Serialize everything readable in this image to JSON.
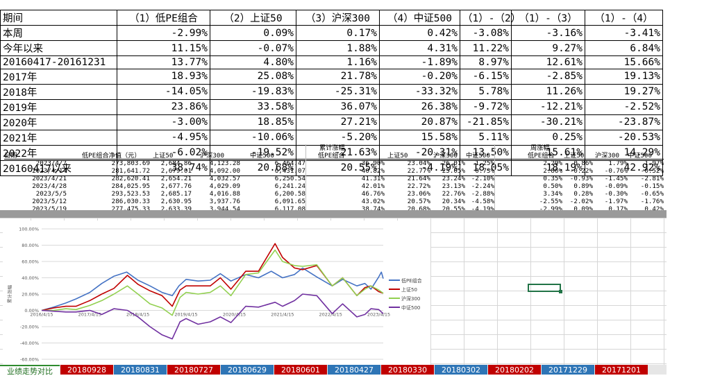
{
  "summary": {
    "headers": [
      "期间",
      "（1）低PE组合",
      "（2）上证50",
      "（3）沪深300",
      "（4）中证500",
      "（1）-（2）",
      "（1）-（3）",
      "（1）-（4）"
    ],
    "rows": [
      [
        "本周",
        "-2.99%",
        "0.09%",
        "0.17%",
        "0.42%",
        "-3.08%",
        "-3.16%",
        "-3.41%"
      ],
      [
        "今年以来",
        "11.15%",
        "-0.07%",
        "1.88%",
        "4.31%",
        "11.22%",
        "9.27%",
        "6.84%"
      ],
      [
        "20160417-20161231",
        "13.77%",
        "4.80%",
        "1.16%",
        "-1.89%",
        "8.97%",
        "12.61%",
        "15.66%"
      ],
      [
        "2017年",
        "18.93%",
        "25.08%",
        "21.78%",
        "-0.20%",
        "-6.15%",
        "-2.85%",
        "19.13%"
      ],
      [
        "2018年",
        "-14.05%",
        "-19.83%",
        "-25.31%",
        "-33.32%",
        "5.78%",
        "11.26%",
        "19.27%"
      ],
      [
        "2019年",
        "23.86%",
        "33.58%",
        "36.07%",
        "26.38%",
        "-9.72%",
        "-12.21%",
        "-2.52%"
      ],
      [
        "2020年",
        "-3.00%",
        "18.85%",
        "27.21%",
        "20.87%",
        "-21.85%",
        "-30.21%",
        "-23.87%"
      ],
      [
        "2021年",
        "-4.95%",
        "-10.06%",
        "-5.20%",
        "15.58%",
        "5.11%",
        "0.25%",
        "-20.53%"
      ],
      [
        "2022年",
        "-6.02%",
        "-19.52%",
        "-21.63%",
        "-20.31%",
        "13.50%",
        "15.61%",
        "14.29%"
      ],
      [
        "20160417以来",
        "38.74%",
        "20.68%",
        "20.55%",
        "-4.19%",
        "18.05%",
        "18.19%",
        "42.92%"
      ]
    ]
  },
  "weekly": {
    "section_cum": "累计涨幅",
    "section_week": "周涨幅",
    "headers": [
      "日期",
      "低PE组合净值（元）",
      "上证50",
      "沪深300",
      "中证500",
      "低PE组合",
      "上证50",
      "沪深300",
      "中证500",
      "低PE组合",
      "上证50",
      "沪深300",
      "中证500"
    ],
    "rows": [
      [
        "2023/4/7",
        "273,803.69",
        "2,684.86",
        "4,123.28",
        "6,464.47",
        "36.90%",
        "23.04%",
        "26.01%",
        "1.25%",
        "2.29%",
        "0.86%",
        "1.79%",
        "1.97%"
      ],
      [
        "2023/4/14",
        "281,641.72",
        "2,679.01",
        "4,092.00",
        "6,431.07",
        "40.82%",
        "22.77%",
        "25.05%",
        "0.73%",
        "2.86%",
        "-0.22%",
        "-0.76%",
        "-0.52%"
      ],
      [
        "2023/4/21",
        "282,620.41",
        "2,654.21",
        "4,032.57",
        "6,250.54",
        "41.31%",
        "21.64%",
        "23.24%",
        "-2.10%",
        "0.35%",
        "-0.93%",
        "-1.45%",
        "-2.81%"
      ],
      [
        "2023/4/28",
        "284,025.95",
        "2,677.76",
        "4,029.09",
        "6,241.24",
        "42.01%",
        "22.72%",
        "23.13%",
        "-2.24%",
        "0.50%",
        "0.89%",
        "-0.09%",
        "-0.15%"
      ],
      [
        "2023/5/5",
        "293,523.53",
        "2,685.17",
        "4,016.88",
        "6,200.58",
        "46.76%",
        "23.06%",
        "22.76%",
        "-2.88%",
        "3.34%",
        "0.28%",
        "-0.30%",
        "-0.65%"
      ],
      [
        "2023/5/12",
        "286,030.33",
        "2,630.95",
        "3,937.76",
        "6,091.65",
        "43.02%",
        "20.57%",
        "20.34%",
        "-4.58%",
        "-2.55%",
        "-2.02%",
        "-1.97%",
        "-1.76%"
      ],
      [
        "2023/5/19",
        "277,475.33",
        "2,633.39",
        "3,944.54",
        "6,117.08",
        "38.74%",
        "20.68%",
        "20.55%",
        "-4.19%",
        "-2.99%",
        "0.09%",
        "0.17%",
        "0.42%"
      ]
    ]
  },
  "chart_data": {
    "type": "line",
    "title": "",
    "ylabel": "累计涨幅",
    "ylim": [
      -0.6,
      1.0
    ],
    "yticks": [
      "100.00%",
      "80.00%",
      "60.00%",
      "40.00%",
      "20.00%",
      "0.00%",
      "-20.00%",
      "-40.00%",
      "-60.00%"
    ],
    "xticks": [
      "2016/4/15",
      "2017/4/15",
      "2018/4/15",
      "2019/4/15",
      "2020/4/15",
      "2021/4/15",
      "2022/4/15",
      "2023/4/15"
    ],
    "x_range": [
      "2016/4/15",
      "2023/5/19"
    ],
    "legend_position": "right",
    "series": [
      {
        "name": "低PE组合",
        "color": "#4472c4",
        "points": [
          [
            "2016/4/15",
            0.0
          ],
          [
            "2016/7/15",
            0.04
          ],
          [
            "2016/10/15",
            0.09
          ],
          [
            "2016/12/31",
            0.14
          ],
          [
            "2017/4/15",
            0.22
          ],
          [
            "2017/7/15",
            0.33
          ],
          [
            "2017/10/15",
            0.42
          ],
          [
            "2018/1/20",
            0.47
          ],
          [
            "2018/4/15",
            0.37
          ],
          [
            "2018/7/15",
            0.3
          ],
          [
            "2018/10/15",
            0.22
          ],
          [
            "2018/12/31",
            0.18
          ],
          [
            "2019/2/20",
            0.3
          ],
          [
            "2019/4/15",
            0.38
          ],
          [
            "2019/7/15",
            0.36
          ],
          [
            "2019/10/15",
            0.37
          ],
          [
            "2019/12/31",
            0.45
          ],
          [
            "2020/3/20",
            0.36
          ],
          [
            "2020/7/10",
            0.44
          ],
          [
            "2020/10/15",
            0.4
          ],
          [
            "2021/1/20",
            0.48
          ],
          [
            "2021/4/15",
            0.4
          ],
          [
            "2021/7/15",
            0.44
          ],
          [
            "2021/9/15",
            0.52
          ],
          [
            "2021/12/31",
            0.41
          ],
          [
            "2022/4/27",
            0.3
          ],
          [
            "2022/7/15",
            0.38
          ],
          [
            "2022/10/31",
            0.3
          ],
          [
            "2022/12/31",
            0.33
          ],
          [
            "2023/2/15",
            0.26
          ],
          [
            "2023/4/15",
            0.41
          ],
          [
            "2023/5/5",
            0.47
          ],
          [
            "2023/5/19",
            0.39
          ]
        ]
      },
      {
        "name": "上证50",
        "color": "#c00000",
        "points": [
          [
            "2016/4/15",
            0.0
          ],
          [
            "2016/7/15",
            0.03
          ],
          [
            "2016/10/15",
            0.05
          ],
          [
            "2016/12/31",
            0.05
          ],
          [
            "2017/4/15",
            0.12
          ],
          [
            "2017/7/15",
            0.2
          ],
          [
            "2017/10/15",
            0.27
          ],
          [
            "2018/1/25",
            0.43
          ],
          [
            "2018/4/15",
            0.32
          ],
          [
            "2018/7/15",
            0.24
          ],
          [
            "2018/10/15",
            0.18
          ],
          [
            "2018/12/31",
            0.05
          ],
          [
            "2019/2/28",
            0.25
          ],
          [
            "2019/4/15",
            0.3
          ],
          [
            "2019/7/15",
            0.3
          ],
          [
            "2019/10/15",
            0.3
          ],
          [
            "2019/12/31",
            0.4
          ],
          [
            "2020/3/20",
            0.26
          ],
          [
            "2020/7/10",
            0.48
          ],
          [
            "2020/10/15",
            0.48
          ],
          [
            "2021/2/18",
            0.82
          ],
          [
            "2021/4/15",
            0.65
          ],
          [
            "2021/7/15",
            0.52
          ],
          [
            "2021/9/15",
            0.5
          ],
          [
            "2021/12/31",
            0.55
          ],
          [
            "2022/4/27",
            0.3
          ],
          [
            "2022/7/15",
            0.4
          ],
          [
            "2022/10/31",
            0.18
          ],
          [
            "2022/12/31",
            0.28
          ],
          [
            "2023/2/15",
            0.3
          ],
          [
            "2023/4/15",
            0.23
          ],
          [
            "2023/5/19",
            0.21
          ]
        ]
      },
      {
        "name": "沪深300",
        "color": "#92d050",
        "points": [
          [
            "2016/4/15",
            0.0
          ],
          [
            "2016/7/15",
            0.0
          ],
          [
            "2016/10/15",
            0.02
          ],
          [
            "2016/12/31",
            0.01
          ],
          [
            "2017/4/15",
            0.06
          ],
          [
            "2017/7/15",
            0.12
          ],
          [
            "2017/10/15",
            0.2
          ],
          [
            "2018/1/25",
            0.3
          ],
          [
            "2018/4/15",
            0.2
          ],
          [
            "2018/7/15",
            0.08
          ],
          [
            "2018/10/15",
            0.03
          ],
          [
            "2018/12/31",
            -0.06
          ],
          [
            "2019/2/28",
            0.16
          ],
          [
            "2019/4/15",
            0.22
          ],
          [
            "2019/7/15",
            0.2
          ],
          [
            "2019/10/15",
            0.22
          ],
          [
            "2019/12/31",
            0.3
          ],
          [
            "2020/3/20",
            0.18
          ],
          [
            "2020/7/10",
            0.44
          ],
          [
            "2020/10/15",
            0.46
          ],
          [
            "2021/2/18",
            0.74
          ],
          [
            "2021/4/15",
            0.6
          ],
          [
            "2021/7/15",
            0.55
          ],
          [
            "2021/9/15",
            0.54
          ],
          [
            "2021/12/31",
            0.56
          ],
          [
            "2022/4/27",
            0.3
          ],
          [
            "2022/7/15",
            0.4
          ],
          [
            "2022/10/31",
            0.18
          ],
          [
            "2022/12/31",
            0.26
          ],
          [
            "2023/2/15",
            0.3
          ],
          [
            "2023/4/15",
            0.25
          ],
          [
            "2023/5/19",
            0.21
          ]
        ]
      },
      {
        "name": "中证500",
        "color": "#7030a0",
        "points": [
          [
            "2016/4/15",
            0.0
          ],
          [
            "2016/7/15",
            -0.01
          ],
          [
            "2016/10/15",
            -0.02
          ],
          [
            "2016/12/31",
            -0.02
          ],
          [
            "2017/4/15",
            0.0
          ],
          [
            "2017/7/15",
            -0.05
          ],
          [
            "2017/10/15",
            0.02
          ],
          [
            "2018/1/25",
            0.0
          ],
          [
            "2018/4/15",
            -0.08
          ],
          [
            "2018/7/15",
            -0.2
          ],
          [
            "2018/10/15",
            -0.3
          ],
          [
            "2018/12/31",
            -0.35
          ],
          [
            "2019/2/28",
            -0.14
          ],
          [
            "2019/4/15",
            -0.1
          ],
          [
            "2019/7/15",
            -0.17
          ],
          [
            "2019/10/15",
            -0.14
          ],
          [
            "2019/12/31",
            -0.08
          ],
          [
            "2020/3/20",
            -0.15
          ],
          [
            "2020/7/10",
            0.05
          ],
          [
            "2020/10/15",
            0.04
          ],
          [
            "2021/2/18",
            0.1
          ],
          [
            "2021/4/15",
            0.05
          ],
          [
            "2021/7/15",
            0.12
          ],
          [
            "2021/9/15",
            0.2
          ],
          [
            "2021/12/31",
            0.18
          ],
          [
            "2022/4/27",
            -0.04
          ],
          [
            "2022/7/15",
            0.08
          ],
          [
            "2022/10/31",
            -0.08
          ],
          [
            "2022/12/31",
            -0.05
          ],
          [
            "2023/2/15",
            0.02
          ],
          [
            "2023/4/15",
            0.01
          ],
          [
            "2023/5/19",
            -0.04
          ]
        ]
      }
    ]
  },
  "tabs": [
    {
      "label": "业绩走势对比",
      "color": "#ffffff"
    },
    {
      "label": "20180928",
      "color": "#c00000"
    },
    {
      "label": "20180831",
      "color": "#2e75b6"
    },
    {
      "label": "20180727",
      "color": "#c00000"
    },
    {
      "label": "20180629",
      "color": "#2e75b6"
    },
    {
      "label": "20180601",
      "color": "#c00000"
    },
    {
      "label": "20180427",
      "color": "#2e75b6"
    },
    {
      "label": "20180330",
      "color": "#c00000"
    },
    {
      "label": "20180302",
      "color": "#2e75b6"
    },
    {
      "label": "20180202",
      "color": "#c00000"
    },
    {
      "label": "20171229",
      "color": "#2e75b6"
    },
    {
      "label": "20171201",
      "color": "#c00000"
    }
  ]
}
